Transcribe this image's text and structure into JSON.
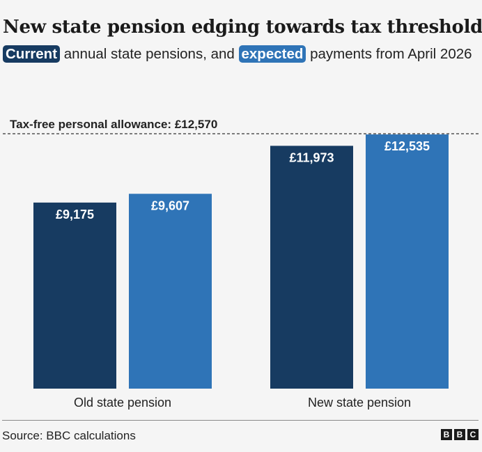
{
  "title": "New state pension edging towards tax threshold",
  "subtitle": {
    "pill_current": "Current",
    "text_mid": " annual state pensions, and ",
    "pill_expected": "expected",
    "text_end": " payments from April 2026"
  },
  "source": "Source: BBC calculations",
  "logo": [
    "B",
    "B",
    "C"
  ],
  "colors": {
    "current": "#173b61",
    "expected": "#2f74b7",
    "background": "#f5f5f5"
  },
  "chart_data": {
    "type": "bar",
    "categories": [
      "Old state pension",
      "New state pension"
    ],
    "series": [
      {
        "name": "Current",
        "values": [
          9175,
          11973
        ],
        "labels": [
          "£9,175",
          "£11,973"
        ]
      },
      {
        "name": "expected",
        "values": [
          9607,
          12535
        ],
        "labels": [
          "£9,607",
          "£12,535"
        ]
      }
    ],
    "reference_line": {
      "value": 12570,
      "label": "Tax-free personal allowance: £12,570",
      "style": "dashed"
    },
    "ylim": [
      0,
      12570
    ],
    "grid": false,
    "legend": "subtitle"
  }
}
